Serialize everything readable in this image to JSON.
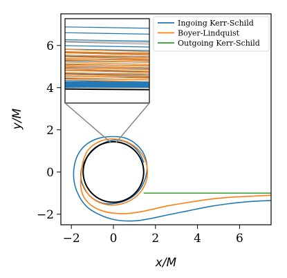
{
  "chart_data": {
    "type": "line",
    "xlabel": "x/M",
    "ylabel": "y/M",
    "xlim": [
      -2.5,
      7.5
    ],
    "ylim": [
      -2.5,
      7.5
    ],
    "x_ticks": [
      -2,
      0,
      2,
      4,
      6
    ],
    "y_ticks": [
      -2,
      0,
      2,
      4,
      6
    ],
    "tick_labels_x": [
      "−2",
      "0",
      "2",
      "4",
      "6"
    ],
    "tick_labels_y": [
      "−2",
      "0",
      "2",
      "4",
      "6"
    ],
    "legend_position": "top-right",
    "horizon_radius": 1.44,
    "series": [
      {
        "name": "Ingoing Kerr-Schild",
        "color": "#1f77b4",
        "x": [
          7.5,
          6.5,
          5.5,
          4.5,
          3.5,
          2.5,
          1.8,
          1.2,
          0.6,
          0.0,
          -0.6,
          -1.2,
          -1.6,
          -1.85,
          -1.88,
          -1.7,
          -1.3,
          -0.7,
          0.0,
          0.6,
          1.1,
          1.45,
          1.6,
          1.5,
          1.2,
          0.7,
          0.0,
          -0.6,
          -1.1,
          -1.45,
          -1.55,
          -1.35,
          -0.95,
          -0.4,
          0.2,
          0.75,
          1.2,
          1.45
        ],
        "y": [
          -1.35,
          -1.4,
          -1.5,
          -1.65,
          -1.85,
          -2.05,
          -2.2,
          -2.3,
          -2.32,
          -2.25,
          -2.05,
          -1.7,
          -1.2,
          -0.55,
          0.15,
          0.8,
          1.3,
          1.6,
          1.68,
          1.6,
          1.3,
          0.85,
          0.25,
          -0.35,
          -0.9,
          -1.3,
          -1.5,
          -1.45,
          -1.15,
          -0.65,
          -0.05,
          0.55,
          1.05,
          1.4,
          1.52,
          1.35,
          0.95,
          0.45
        ]
      },
      {
        "name": "Boyer-Lindquist",
        "color": "#ff7f0e",
        "x": [
          7.5,
          6.5,
          5.5,
          4.5,
          3.5,
          2.5,
          1.8,
          1.2,
          0.6,
          0.0,
          -0.5,
          -0.95,
          -1.25,
          -1.45,
          -1.55,
          -1.55,
          -1.5,
          -1.4,
          -1.2,
          -0.8,
          -0.3,
          0.2,
          0.7,
          1.15,
          1.45,
          1.6,
          1.6,
          1.45,
          1.15,
          0.7,
          0.2,
          -0.3,
          -0.8,
          -1.2,
          -1.45
        ],
        "y": [
          -1.1,
          -1.15,
          -1.2,
          -1.3,
          -1.45,
          -1.62,
          -1.78,
          -1.9,
          -1.97,
          -1.95,
          -1.85,
          -1.65,
          -1.4,
          -1.1,
          -0.7,
          -0.3,
          0.2,
          0.65,
          1.05,
          1.38,
          1.55,
          1.55,
          1.4,
          1.1,
          0.7,
          0.25,
          -0.25,
          -0.7,
          -1.1,
          -1.4,
          -1.55,
          -1.55,
          -1.38,
          -1.05,
          -0.6
        ]
      },
      {
        "name": "Outgoing Kerr-Schild",
        "color": "#2ca02c",
        "x": [
          7.5,
          6.0,
          4.0,
          2.0,
          1.44
        ],
        "y": [
          -1.0,
          -1.0,
          -1.0,
          -1.0,
          -1.0
        ]
      }
    ],
    "inset": {
      "xlim": [
        -0.15,
        0.15
      ],
      "ylim": [
        3.8,
        7.4
      ],
      "ticks_shown": false,
      "zoom_target_x": 0.0,
      "zoom_target_y": 1.44
    }
  }
}
